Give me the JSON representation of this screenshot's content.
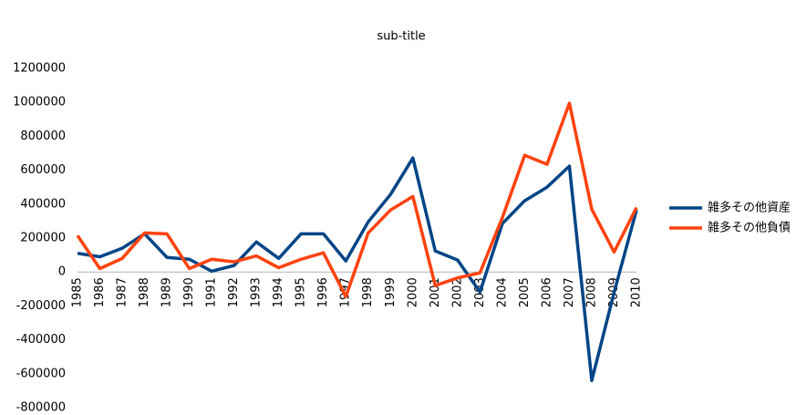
{
  "chart_data": {
    "type": "line",
    "title": "sub-title",
    "categories": [
      "1985",
      "1986",
      "1987",
      "1988",
      "1989",
      "1990",
      "1991",
      "1992",
      "1993",
      "1994",
      "1995",
      "1996",
      "1997",
      "1998",
      "1999",
      "2000",
      "2001",
      "2002",
      "2003",
      "2004",
      "2005",
      "2006",
      "2007",
      "2008",
      "2009",
      "2010"
    ],
    "series": [
      {
        "name": "雑多その他資産",
        "color": "#004586",
        "values": [
          110000,
          90000,
          140000,
          225000,
          86000,
          75000,
          5000,
          38000,
          177000,
          80000,
          225000,
          225000,
          65000,
          295000,
          457000,
          672000,
          124000,
          70000,
          -118000,
          285000,
          420000,
          500000,
          624000,
          -640000,
          -120000,
          365000
        ]
      },
      {
        "name": "雑多その他負債",
        "color": "#ff420e",
        "values": [
          215000,
          20000,
          80000,
          230000,
          225000,
          20000,
          75000,
          60000,
          95000,
          25000,
          75000,
          113000,
          -145000,
          230000,
          365000,
          445000,
          -80000,
          -35000,
          -5000,
          320000,
          688000,
          635000,
          995000,
          370000,
          118000,
          380000
        ]
      }
    ],
    "ylim": [
      -800000,
      1200000
    ],
    "yticks": [
      -800000,
      -600000,
      -400000,
      -200000,
      0,
      200000,
      400000,
      600000,
      800000,
      1000000,
      1200000
    ],
    "legend": "right"
  }
}
